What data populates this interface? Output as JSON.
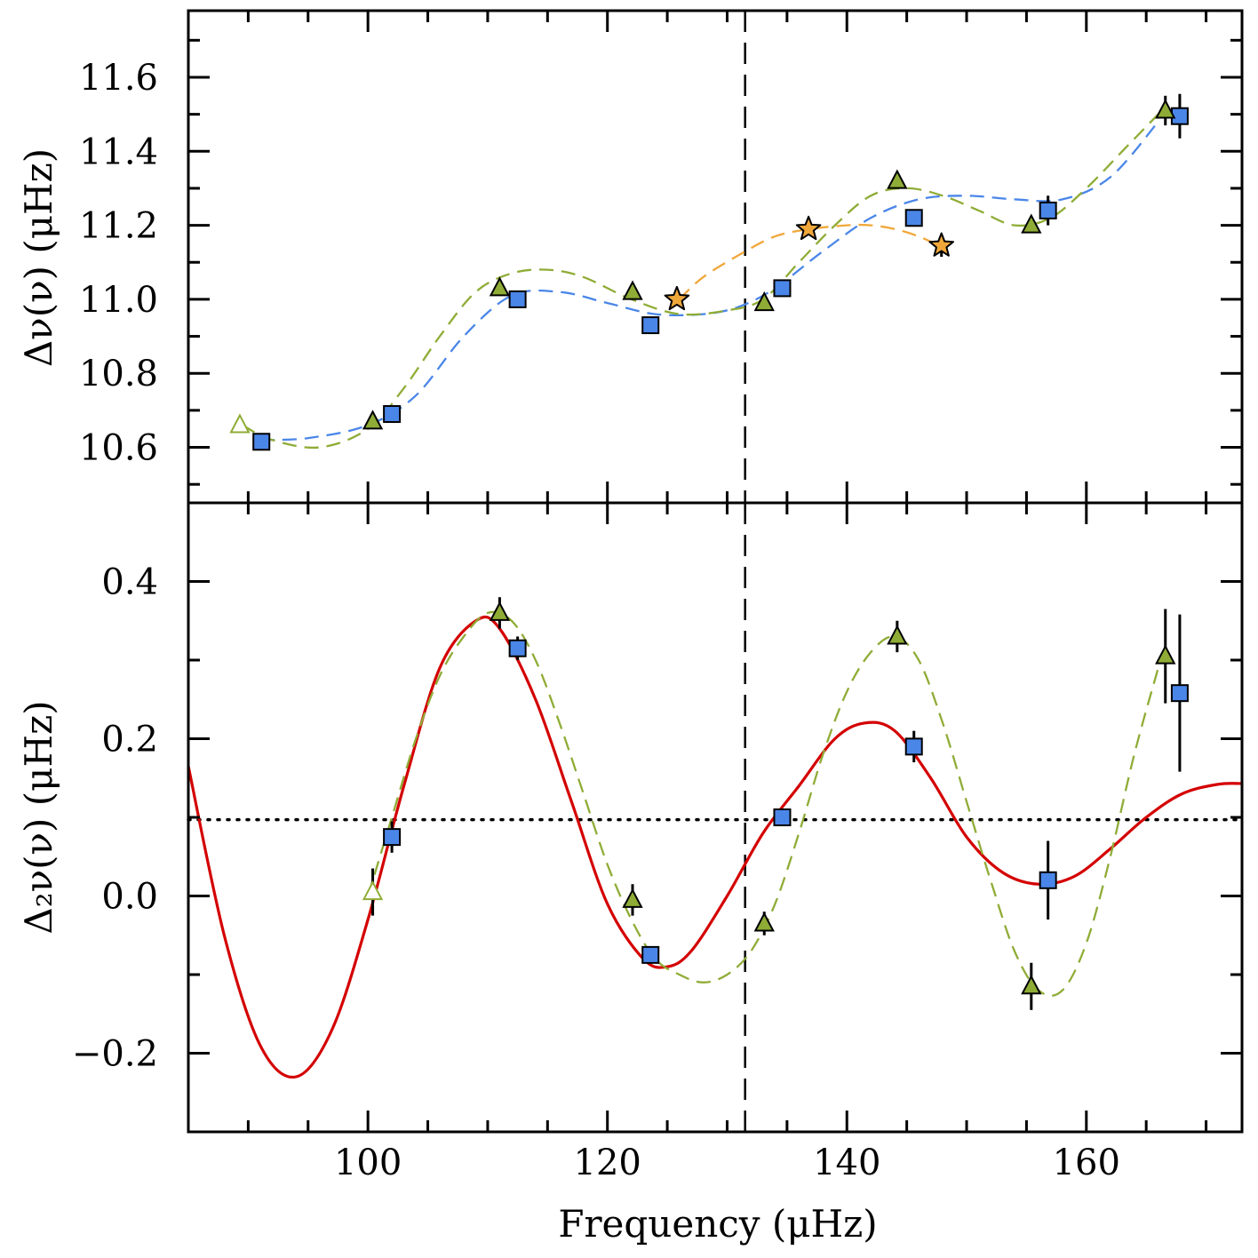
{
  "chart_data": [
    {
      "type": "scatter",
      "panel": "top",
      "ylabel": "Δν(ν)  (μHz)",
      "xlim": [
        85,
        173
      ],
      "ylim": [
        10.45,
        11.78
      ],
      "yticks": [
        10.6,
        10.8,
        11.0,
        11.2,
        11.4,
        11.6
      ],
      "ytick_labels": [
        "10.6",
        "10.8",
        "11.0",
        "11.2",
        "11.4",
        "11.6"
      ],
      "vline_x": 131.5,
      "series": [
        {
          "name": "squares",
          "marker": "square",
          "color": "#4a86e8",
          "points": [
            {
              "x": 91.1,
              "y": 10.615
            },
            {
              "x": 102.0,
              "y": 10.69
            },
            {
              "x": 112.5,
              "y": 11.0
            },
            {
              "x": 123.6,
              "y": 10.93
            },
            {
              "x": 134.6,
              "y": 11.03
            },
            {
              "x": 145.6,
              "y": 11.22
            },
            {
              "x": 156.8,
              "y": 11.24,
              "err": 0.04
            },
            {
              "x": 167.8,
              "y": 11.495,
              "err": 0.06
            }
          ]
        },
        {
          "name": "triangles",
          "marker": "triangle",
          "color": "#8fac36",
          "points": [
            {
              "x": 89.3,
              "y": 10.66,
              "open": true
            },
            {
              "x": 100.4,
              "y": 10.67
            },
            {
              "x": 111.0,
              "y": 11.03
            },
            {
              "x": 122.1,
              "y": 11.02
            },
            {
              "x": 133.1,
              "y": 10.99
            },
            {
              "x": 144.2,
              "y": 11.32
            },
            {
              "x": 155.4,
              "y": 11.2
            },
            {
              "x": 166.6,
              "y": 11.51,
              "err": 0.04
            }
          ]
        },
        {
          "name": "stars",
          "marker": "star",
          "color": "#f0a73a",
          "points": [
            {
              "x": 125.8,
              "y": 11.0
            },
            {
              "x": 136.8,
              "y": 11.19
            },
            {
              "x": 147.9,
              "y": 11.145,
              "err": 0.03
            }
          ]
        }
      ],
      "curves": [
        {
          "name": "blue-dashed-fit",
          "style": "dashed",
          "color": "#4a86e8",
          "x": [
            91,
            95,
            100,
            104,
            108,
            112,
            116,
            120,
            124,
            128,
            131,
            134,
            138,
            142,
            146,
            150,
            154,
            158,
            162,
            166
          ],
          "y": [
            10.62,
            10.625,
            10.66,
            10.74,
            10.9,
            11.01,
            11.02,
            10.99,
            10.96,
            10.96,
            10.98,
            11.03,
            11.13,
            11.22,
            11.27,
            11.28,
            11.27,
            11.27,
            11.33,
            11.48
          ]
        },
        {
          "name": "green-dashed-fit",
          "style": "dashed",
          "color": "#8fac36",
          "x": [
            89.5,
            92,
            96,
            100,
            103,
            106,
            109,
            112,
            115,
            118,
            122,
            126,
            130,
            133,
            136,
            139,
            142,
            145,
            148,
            151,
            154,
            157,
            160,
            163,
            166
          ],
          "y": [
            10.66,
            10.62,
            10.6,
            10.65,
            10.76,
            10.9,
            11.02,
            11.07,
            11.08,
            11.06,
            11.0,
            10.96,
            10.97,
            11.0,
            11.1,
            11.2,
            11.28,
            11.3,
            11.28,
            11.24,
            11.2,
            11.22,
            11.3,
            11.4,
            11.5
          ]
        },
        {
          "name": "orange-dashed-fit",
          "style": "dashed",
          "color": "#f0a73a",
          "x": [
            126,
            128,
            131,
            134,
            137,
            140,
            142,
            144,
            146,
            148
          ],
          "y": [
            11.0,
            11.06,
            11.12,
            11.17,
            11.19,
            11.2,
            11.2,
            11.19,
            11.17,
            11.14
          ]
        }
      ]
    },
    {
      "type": "scatter",
      "panel": "bottom",
      "xlabel": "Frequency  (μHz)",
      "ylabel": "Δ₂ν(ν)  (μHz)",
      "xlim": [
        85,
        173
      ],
      "ylim": [
        -0.3,
        0.5
      ],
      "xticks": [
        100,
        120,
        140,
        160
      ],
      "xtick_labels": [
        "100",
        "120",
        "140",
        "160"
      ],
      "yticks": [
        -0.2,
        0.0,
        0.2,
        0.4
      ],
      "ytick_labels": [
        "−0.2",
        "0.0",
        "0.2",
        "0.4"
      ],
      "vline_x": 131.5,
      "hline_y": 0.097,
      "series": [
        {
          "name": "squares",
          "marker": "square",
          "color": "#4a86e8",
          "points": [
            {
              "x": 102.0,
              "y": 0.075,
              "err": 0.02
            },
            {
              "x": 112.5,
              "y": 0.315,
              "err": 0.015
            },
            {
              "x": 123.6,
              "y": -0.075
            },
            {
              "x": 134.6,
              "y": 0.1
            },
            {
              "x": 145.6,
              "y": 0.19,
              "err": 0.02
            },
            {
              "x": 156.8,
              "y": 0.02,
              "err": 0.05
            },
            {
              "x": 167.8,
              "y": 0.258,
              "err": 0.1
            }
          ]
        },
        {
          "name": "triangles",
          "marker": "triangle",
          "color": "#8fac36",
          "points": [
            {
              "x": 100.4,
              "y": 0.005,
              "err": 0.03,
              "open": true
            },
            {
              "x": 111.0,
              "y": 0.36,
              "err": 0.02
            },
            {
              "x": 122.1,
              "y": -0.005,
              "err": 0.02
            },
            {
              "x": 133.1,
              "y": -0.035,
              "err": 0.015
            },
            {
              "x": 144.2,
              "y": 0.33,
              "err": 0.02
            },
            {
              "x": 155.4,
              "y": -0.115,
              "err": 0.03
            },
            {
              "x": 166.6,
              "y": 0.305,
              "err": 0.06
            }
          ]
        }
      ],
      "curves": [
        {
          "name": "red-solid-fit",
          "style": "solid",
          "color": "#d40000",
          "x": [
            85,
            88,
            91,
            94,
            97,
            100,
            103,
            106,
            109,
            111,
            114,
            117,
            120,
            123,
            125,
            127,
            130,
            133,
            136,
            139,
            141.5,
            144,
            147,
            150,
            153,
            156,
            159,
            162,
            165,
            168,
            171,
            173
          ],
          "y": [
            0.165,
            -0.05,
            -0.19,
            -0.23,
            -0.17,
            -0.03,
            0.14,
            0.29,
            0.35,
            0.34,
            0.25,
            0.12,
            -0.01,
            -0.08,
            -0.09,
            -0.07,
            0.0,
            0.08,
            0.14,
            0.2,
            0.22,
            0.21,
            0.15,
            0.075,
            0.03,
            0.015,
            0.025,
            0.06,
            0.1,
            0.13,
            0.142,
            0.143
          ]
        },
        {
          "name": "green-dashed-fit",
          "style": "dashed",
          "color": "#8fac36",
          "x": [
            100,
            102,
            104,
            106,
            108,
            110,
            112,
            114,
            116,
            118,
            120,
            122,
            124,
            126,
            128,
            130,
            132,
            134,
            136,
            138,
            140,
            142,
            144,
            146,
            148,
            150,
            152,
            154,
            156,
            158,
            160,
            162,
            164,
            166
          ],
          "y": [
            0.0,
            0.1,
            0.2,
            0.28,
            0.33,
            0.36,
            0.35,
            0.3,
            0.22,
            0.13,
            0.04,
            -0.03,
            -0.08,
            -0.1,
            -0.11,
            -0.1,
            -0.07,
            -0.01,
            0.08,
            0.18,
            0.26,
            0.31,
            0.33,
            0.3,
            0.22,
            0.12,
            0.02,
            -0.07,
            -0.12,
            -0.12,
            -0.06,
            0.05,
            0.18,
            0.29
          ]
        }
      ]
    }
  ]
}
